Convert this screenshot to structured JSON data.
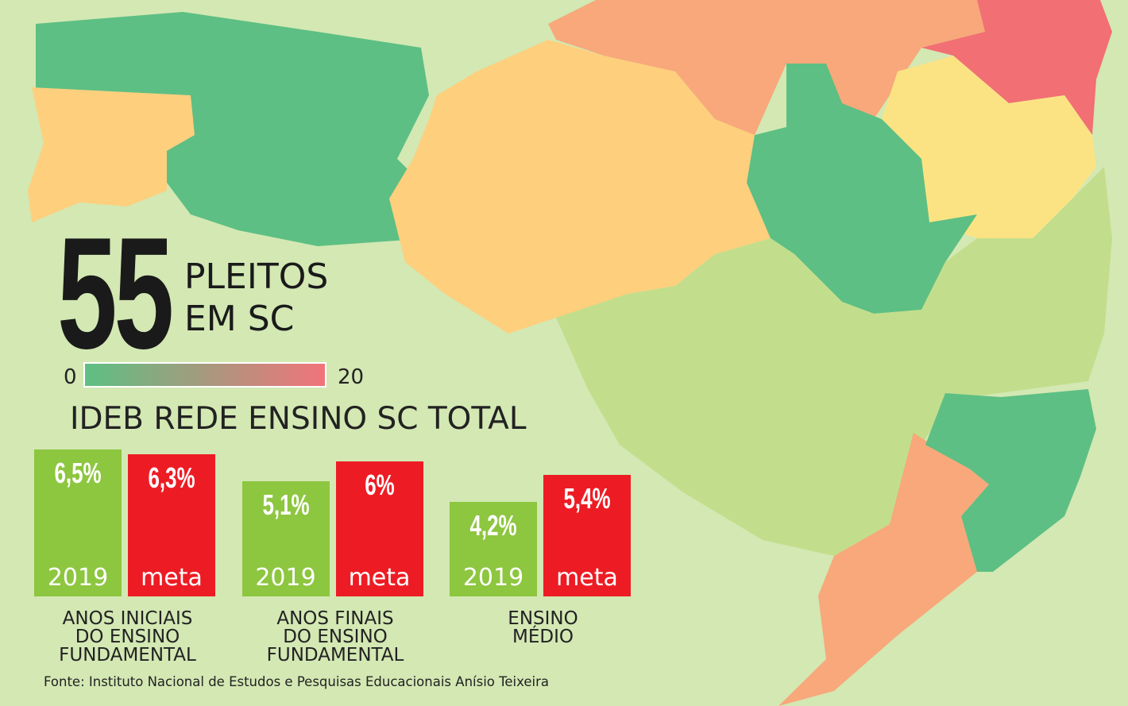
{
  "chart_data": {
    "type": "bar",
    "headline": {
      "number": "55",
      "line1": "PLEITOS",
      "line2": "EM SC"
    },
    "colorbar": {
      "min_label": "0",
      "max_label": "20"
    },
    "title": "IDEB REDE ENSINO SC TOTAL",
    "categories": [
      "ANOS INICIAIS\nDO ENSINO\nFUNDAMENTAL",
      "ANOS FINAIS\nDO ENSINO\nFUNDAMENTAL",
      "ENSINO\nMÉDIO"
    ],
    "series": [
      {
        "name": "2019",
        "color": "#8dc63f",
        "values": [
          6.5,
          5.1,
          4.2
        ],
        "value_labels": [
          "6,5%",
          "5,1%",
          "4,2%"
        ]
      },
      {
        "name": "meta",
        "color": "#ed1c24",
        "values": [
          6.3,
          6,
          5.4
        ],
        "value_labels": [
          "6,3%",
          "6%",
          "5,4%"
        ]
      }
    ],
    "source": "Fonte: Instituto Nacional de Estudos e Pesquisas Educacionais Anísio Teixeira"
  }
}
